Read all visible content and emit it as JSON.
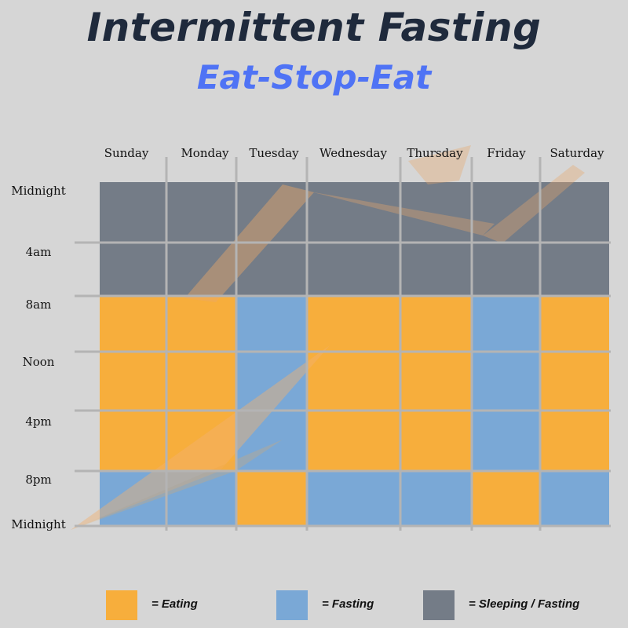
{
  "header": {
    "title": "Intermittent Fasting",
    "subtitle": "Eat-Stop-Eat"
  },
  "colors": {
    "eating": "#f7ae3c",
    "fasting": "#7aa8d6",
    "sleeping": "#747c87",
    "background": "#d6d6d6",
    "gridline": "#b4b4b4"
  },
  "chart_data": {
    "type": "heatmap",
    "title": "Intermittent Fasting",
    "subtitle": "Eat-Stop-Eat",
    "days": [
      "Sunday",
      "Monday",
      "Tuesday",
      "Wednesday",
      "Thursday",
      "Friday",
      "Saturday"
    ],
    "time_labels": [
      "Midnight",
      "4am",
      "8am",
      "Noon",
      "4pm",
      "8pm",
      "Midnight"
    ],
    "categories": {
      "eating": "= Eating",
      "fasting": "= Fasting",
      "sleeping": "= Sleeping / Fasting"
    },
    "schedule": [
      [
        "sleeping",
        "sleeping",
        "eating",
        "eating",
        "eating",
        "fasting"
      ],
      [
        "sleeping",
        "sleeping",
        "eating",
        "eating",
        "eating",
        "fasting"
      ],
      [
        "sleeping",
        "sleeping",
        "fasting",
        "fasting",
        "fasting",
        "eating"
      ],
      [
        "sleeping",
        "sleeping",
        "eating",
        "eating",
        "eating",
        "fasting"
      ],
      [
        "sleeping",
        "sleeping",
        "eating",
        "eating",
        "eating",
        "fasting"
      ],
      [
        "sleeping",
        "sleeping",
        "fasting",
        "fasting",
        "fasting",
        "eating"
      ],
      [
        "sleeping",
        "sleeping",
        "eating",
        "eating",
        "eating",
        "fasting"
      ]
    ]
  },
  "legend": [
    {
      "key": "eating",
      "label": "= Eating"
    },
    {
      "key": "fasting",
      "label": "= Fasting"
    },
    {
      "key": "sleeping",
      "label": "= Sleeping / Fasting"
    }
  ]
}
